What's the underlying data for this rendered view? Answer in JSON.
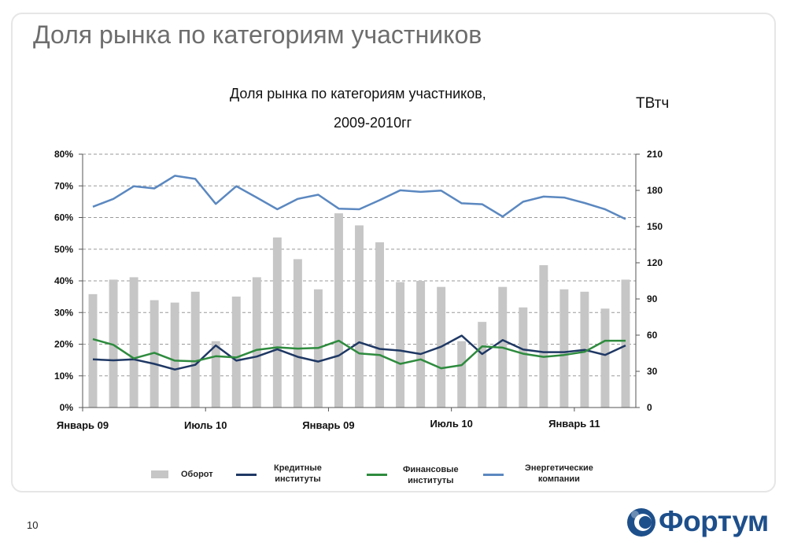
{
  "slide": {
    "title": "Доля рынка по категориям участников",
    "page_number": "10",
    "logo_text": "Фортум"
  },
  "colors": {
    "bars": "#c6c6c6",
    "credit": "#1f3864",
    "financial": "#2e8b3e",
    "energy": "#5b88c0",
    "logo": "#1d4f8b"
  },
  "chart_data": {
    "type": "bar+line",
    "title_line1": "Доля рынка по категориям участников,",
    "title_line2": "2009-2010гг",
    "y2_unit": "ТВтч",
    "x_tick_labels": [
      {
        "label": "Январь 09",
        "index": 0
      },
      {
        "label": "Июль 10",
        "index": 6
      },
      {
        "label": "Январь 09",
        "index": 12
      },
      {
        "label": "Июль 10",
        "index": 18
      },
      {
        "label": "Январь 11",
        "index": 24
      }
    ],
    "y_left": {
      "min": 0,
      "max": 80,
      "ticks": [
        "0%",
        "10%",
        "20%",
        "30%",
        "40%",
        "50%",
        "60%",
        "70%",
        "80%"
      ]
    },
    "y_right": {
      "min": 0,
      "max": 210,
      "ticks": [
        "0",
        "30",
        "60",
        "90",
        "120",
        "150",
        "180",
        "210"
      ]
    },
    "grid": true,
    "bars": {
      "name": "Оборот",
      "axis": "right",
      "values": [
        94,
        106,
        108,
        89,
        87,
        96,
        55,
        92,
        108,
        141,
        123,
        98,
        161,
        151,
        137,
        104,
        105,
        100,
        55,
        71,
        100,
        83,
        118,
        98,
        96,
        82,
        106
      ]
    },
    "series": [
      {
        "name": "Кредитные институты",
        "key": "credit",
        "axis": "left",
        "values": [
          15.2,
          14.9,
          15.2,
          13.8,
          12.0,
          13.5,
          19.6,
          14.8,
          16.1,
          18.4,
          16.0,
          14.5,
          16.4,
          20.6,
          18.5,
          18.0,
          16.9,
          19.2,
          22.7,
          16.9,
          21.3,
          18.3,
          17.5,
          17.5,
          18.2,
          16.6,
          19.6
        ]
      },
      {
        "name": "Финансовые институты",
        "key": "financial",
        "axis": "left",
        "values": [
          21.6,
          19.8,
          15.5,
          17.3,
          14.8,
          14.6,
          16.2,
          15.8,
          18.2,
          19.0,
          18.6,
          18.8,
          21.1,
          17.1,
          16.6,
          13.8,
          15.2,
          12.4,
          13.4,
          19.3,
          18.9,
          17.0,
          16.0,
          16.6,
          17.6,
          21.1,
          21.1
        ]
      },
      {
        "name": "Энергетические компании",
        "key": "energy",
        "axis": "left",
        "values": [
          63.4,
          65.9,
          69.9,
          69.2,
          73.2,
          72.2,
          64.3,
          69.9,
          66.3,
          62.6,
          65.9,
          67.2,
          62.8,
          62.6,
          65.5,
          68.6,
          68.1,
          68.5,
          64.5,
          64.2,
          60.3,
          65.0,
          66.6,
          66.3,
          64.6,
          62.6,
          59.5
        ]
      }
    ],
    "legend": [
      {
        "key": "bars",
        "label": "Оборот"
      },
      {
        "key": "credit",
        "label_line1": "Кредитные",
        "label_line2": "институты"
      },
      {
        "key": "financial",
        "label_line1": "Финансовые",
        "label_line2": "институты"
      },
      {
        "key": "energy",
        "label_line1": "Энергетические",
        "label_line2": "компании"
      }
    ]
  }
}
